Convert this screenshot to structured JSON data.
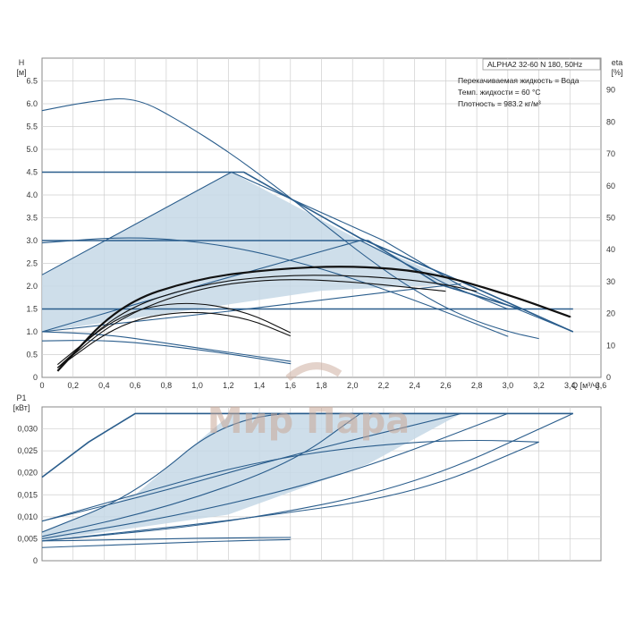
{
  "info": {
    "model": "ALPHA2 32-60 N 180, 50Hz",
    "liquid": "Перекачиваемая жидкость = Вода",
    "temperature": "Темп. жидкости = 60 °C",
    "density": "Плотность = 983.2 кг/м³"
  },
  "watermark": "Мир Пара",
  "colors": {
    "curve": "#2a5d8c",
    "fill": "#c6d8e6",
    "grid": "#cfcfcf",
    "eff": "#111111"
  },
  "chart_data": [
    {
      "type": "line",
      "ylabel_top": "H",
      "ylabel_unit": "[м]",
      "y2label_top": "eta",
      "y2label_unit": "[%]",
      "xlabel": "Q [м³/ч]",
      "xlim": [
        0,
        3.6
      ],
      "ylim": [
        0,
        7
      ],
      "y2lim": [
        0,
        100
      ],
      "xticks": [
        "0",
        "0,2",
        "0,4",
        "0,6",
        "0,8",
        "1,0",
        "1,2",
        "1,4",
        "1,6",
        "1,8",
        "2,0",
        "2,2",
        "2,4",
        "2,6",
        "2,8",
        "3,0",
        "3,2",
        "3,4",
        "3,6"
      ],
      "yticks": [
        "0",
        "0.5",
        "1.0",
        "1.5",
        "2.0",
        "2.5",
        "3.0",
        "3.5",
        "4.0",
        "4.5",
        "5.0",
        "5.5",
        "6.0",
        "6.5"
      ],
      "y2ticks": [
        "0",
        "10",
        "20",
        "30",
        "40",
        "50",
        "60",
        "70",
        "80",
        "90"
      ],
      "grid": true,
      "shaded_region": [
        [
          0,
          1.0
        ],
        [
          0,
          2.25
        ],
        [
          1.22,
          4.5
        ],
        [
          2.05,
          3.0
        ],
        [
          2.7,
          2.05
        ],
        [
          1.8,
          1.9
        ],
        [
          0,
          1.0
        ]
      ],
      "series": [
        {
          "role": "max-curve",
          "x": [
            0,
            0.3,
            0.6,
            0.9,
            1.2,
            1.5,
            1.8,
            2.1,
            2.4,
            2.7,
            3.0,
            3.2
          ],
          "y": [
            5.85,
            6.05,
            6.15,
            5.6,
            4.95,
            4.2,
            3.4,
            2.6,
            1.9,
            1.35,
            1.0,
            0.85
          ]
        },
        {
          "role": "constant-pressure-4.5",
          "x": [
            0,
            1.3,
            2.05,
            2.7,
            3.42
          ],
          "y": [
            4.5,
            4.5,
            3.05,
            2.1,
            1.0
          ]
        },
        {
          "role": "constant-pressure-3.0",
          "x": [
            0,
            2.1,
            2.55,
            3.08
          ],
          "y": [
            3.0,
            3.0,
            2.05,
            1.5
          ]
        },
        {
          "role": "constant-pressure-1.5",
          "x": [
            0,
            3.42
          ],
          "y": [
            1.5,
            1.5
          ]
        },
        {
          "role": "proportional-1",
          "x": [
            0,
            1.22,
            2.2,
            2.7,
            3.42
          ],
          "y": [
            2.25,
            4.5,
            3.0,
            2.0,
            1.0
          ]
        },
        {
          "role": "proportional-2",
          "x": [
            0,
            1.0,
            2.05,
            2.6,
            3.0
          ],
          "y": [
            1.0,
            2.0,
            3.0,
            2.05,
            1.5
          ]
        },
        {
          "role": "proportional-3",
          "x": [
            0,
            1.2,
            2.3,
            2.7
          ],
          "y": [
            1.0,
            1.45,
            1.9,
            2.05
          ]
        },
        {
          "role": "autoadapt-high",
          "x": [
            0,
            0.6,
            1.2,
            1.8,
            2.4,
            3.0
          ],
          "y": [
            2.95,
            3.1,
            2.9,
            2.4,
            1.7,
            0.9
          ]
        },
        {
          "role": "min-curve",
          "x": [
            0,
            0.4,
            0.8,
            1.2,
            1.6
          ],
          "y": [
            0.8,
            0.82,
            0.7,
            0.52,
            0.3
          ]
        },
        {
          "role": "night-curve",
          "x": [
            0,
            0.4,
            0.8,
            1.2,
            1.6
          ],
          "y": [
            1.0,
            0.95,
            0.75,
            0.55,
            0.35
          ]
        }
      ],
      "efficiency_series": [
        {
          "x": [
            0.1,
            0.5,
            1.0,
            1.5,
            2.0,
            2.5,
            3.0,
            3.4
          ],
          "eta": [
            2,
            23,
            31,
            34,
            35,
            33,
            26,
            19
          ]
        },
        {
          "x": [
            0.1,
            0.5,
            1.0,
            1.5,
            2.0,
            2.5,
            2.8
          ],
          "eta": [
            3,
            21,
            29,
            32,
            32,
            30,
            27
          ]
        },
        {
          "x": [
            0.1,
            0.5,
            1.0,
            1.5,
            2.0,
            2.6
          ],
          "eta": [
            3,
            19,
            28,
            31,
            30,
            27
          ]
        },
        {
          "x": [
            0.1,
            0.5,
            0.9,
            1.3,
            1.6
          ],
          "eta": [
            4,
            20,
            24,
            21,
            14
          ]
        },
        {
          "x": [
            0.1,
            0.5,
            0.9,
            1.3,
            1.6
          ],
          "eta": [
            3,
            17,
            21,
            19,
            13
          ]
        }
      ]
    },
    {
      "type": "line",
      "ylabel_top": "P1",
      "ylabel_unit": "[кВт]",
      "xlim": [
        0,
        3.6
      ],
      "ylim": [
        0,
        0.035
      ],
      "yticks": [
        "0",
        "0,005",
        "0,010",
        "0,015",
        "0,020",
        "0,025",
        "0,030"
      ],
      "grid": true,
      "shaded_region": [
        [
          0,
          0.0045
        ],
        [
          0,
          0.0065
        ],
        [
          0.6,
          0.015
        ],
        [
          1.22,
          0.0335
        ],
        [
          2.7,
          0.0335
        ],
        [
          2.1,
          0.022
        ],
        [
          1.2,
          0.0105
        ],
        [
          0,
          0.0045
        ]
      ],
      "series": [
        {
          "role": "max-power",
          "x": [
            0,
            0.3,
            0.6,
            3.42
          ],
          "y": [
            0.019,
            0.027,
            0.0335,
            0.0335
          ]
        },
        {
          "role": "cp-4.5",
          "x": [
            0,
            0.6,
            1.22,
            2.05,
            2.7
          ],
          "y": [
            0.0065,
            0.015,
            0.0335,
            0.0335,
            0.0335
          ]
        },
        {
          "role": "cp-3.0",
          "x": [
            0,
            0.8,
            1.6,
            2.05
          ],
          "y": [
            0.0055,
            0.012,
            0.022,
            0.0335
          ]
        },
        {
          "role": "cp-1.5",
          "x": [
            0,
            1.2,
            2.4,
            3.42
          ],
          "y": [
            0.0045,
            0.0085,
            0.017,
            0.0335
          ]
        },
        {
          "role": "pp-1",
          "x": [
            0,
            0.8,
            1.6,
            2.7
          ],
          "y": [
            0.009,
            0.016,
            0.024,
            0.0335
          ]
        },
        {
          "role": "pp-2",
          "x": [
            0,
            1.0,
            2.0,
            3.0
          ],
          "y": [
            0.005,
            0.011,
            0.02,
            0.0335
          ]
        },
        {
          "role": "pp-3",
          "x": [
            0,
            1.2,
            2.4,
            3.2
          ],
          "y": [
            0.0045,
            0.009,
            0.015,
            0.027
          ]
        },
        {
          "role": "autoadapt-high",
          "x": [
            0,
            0.6,
            1.2,
            1.8,
            2.4,
            2.8,
            3.2
          ],
          "y": [
            0.009,
            0.015,
            0.021,
            0.025,
            0.027,
            0.0275,
            0.027
          ]
        },
        {
          "role": "min-power",
          "x": [
            0,
            0.4,
            0.8,
            1.2,
            1.6
          ],
          "y": [
            0.0045,
            0.0047,
            0.005,
            0.0052,
            0.0053
          ]
        },
        {
          "role": "night-power",
          "x": [
            0,
            0.4,
            0.8,
            1.2,
            1.6
          ],
          "y": [
            0.003,
            0.0035,
            0.004,
            0.0045,
            0.0048
          ]
        }
      ]
    }
  ]
}
